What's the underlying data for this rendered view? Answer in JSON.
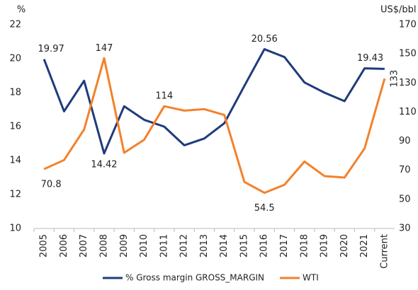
{
  "chart_data": {
    "type": "line",
    "ylabel": "%",
    "y2label": "US$/bbl",
    "categories": [
      "2005",
      "2006",
      "2007",
      "2008",
      "2009",
      "2010",
      "2011",
      "2012",
      "2013",
      "2014",
      "2015",
      "2016",
      "2017",
      "2018",
      "2019",
      "2020",
      "2021",
      "Current"
    ],
    "series": [
      {
        "name": "% Gross margin GROSS_MARGIN",
        "color": "#1f3b7c",
        "values": [
          19.97,
          16.9,
          18.7,
          14.42,
          17.2,
          16.4,
          16.0,
          14.9,
          15.3,
          16.2,
          18.4,
          20.56,
          20.1,
          18.6,
          18.0,
          17.5,
          19.43,
          19.4
        ],
        "value_labels": [
          "19.97",
          null,
          null,
          "14.42",
          null,
          null,
          null,
          null,
          null,
          null,
          null,
          "20.56",
          null,
          null,
          null,
          null,
          "19.43",
          null
        ]
      },
      {
        "name": "WTI",
        "color": "#f4812a",
        "axis": "y2",
        "values": [
          70.8,
          77,
          98,
          147,
          82,
          91,
          114,
          111,
          112,
          108,
          62,
          54.5,
          60,
          76,
          66,
          65,
          85,
          133
        ],
        "value_labels": [
          "70.8",
          null,
          null,
          "147",
          null,
          null,
          "114",
          null,
          null,
          null,
          null,
          "54.5",
          null,
          null,
          null,
          null,
          null,
          "133"
        ]
      }
    ],
    "ylim": [
      10,
      22
    ],
    "yticks": [
      10,
      12,
      14,
      16,
      18,
      20,
      22
    ],
    "y2lim": [
      30,
      170
    ],
    "y2ticks": [
      30,
      50,
      70,
      90,
      110,
      130,
      150,
      170
    ],
    "legend": "bottom"
  }
}
